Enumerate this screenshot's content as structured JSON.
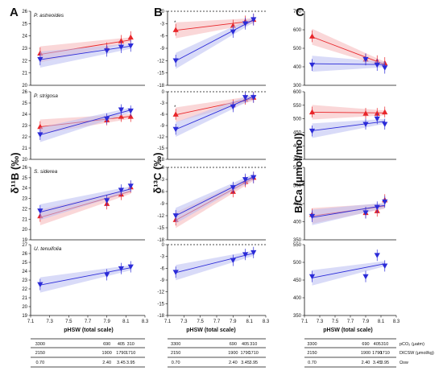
{
  "figure": {
    "panel_letters": [
      "A",
      "B",
      "C"
    ],
    "axis_labels": {
      "A_y": "δ¹¹B (‰)",
      "B_y": "δ¹³C (‰)",
      "C_y": "B/Ca (μmol/mol)",
      "x": "pHSW (total scale)"
    },
    "species": [
      "P. astreoides",
      "P. strigosa",
      "S. siderea",
      "U. tenuifolia"
    ],
    "asterisk": "*",
    "colors": {
      "red": "#e8262a",
      "blue": "#2b2bd8",
      "olive": "#8a7a2a",
      "red_band": "#f5b6b8",
      "blue_band": "#b9bdf2"
    }
  },
  "table": {
    "pco2": [
      "3300",
      "690",
      "405",
      "310"
    ],
    "dic": [
      "2150",
      "1900",
      "1790",
      "1710"
    ],
    "omega": [
      "0.70",
      "2.40",
      "3.45",
      "3.95"
    ],
    "labels": [
      "pCO₂ (μatm)",
      "DICSW (μmol/kg)",
      "Ωsw"
    ]
  },
  "chart_data": [
    {
      "type": "scatter",
      "panel": "A",
      "species": "P. astreoides",
      "x": [
        7.2,
        7.9,
        8.05,
        8.15
      ],
      "xlim": [
        7.1,
        8.3
      ],
      "ylim": [
        20,
        26
      ],
      "yticks": [
        20,
        21,
        22,
        23,
        24,
        25,
        26
      ],
      "series": [
        {
          "color": "red",
          "values": [
            22.6,
            23.0,
            23.6,
            23.9
          ]
        },
        {
          "color": "blue",
          "values": [
            22.1,
            22.8,
            23.1,
            23.2
          ]
        }
      ]
    },
    {
      "type": "scatter",
      "panel": "A",
      "species": "P. strigosa",
      "x": [
        7.2,
        7.9,
        8.05,
        8.15
      ],
      "xlim": [
        7.1,
        8.3
      ],
      "ylim": [
        20,
        26
      ],
      "yticks": [
        20,
        21,
        22,
        23,
        24,
        25,
        26
      ],
      "series": [
        {
          "color": "red",
          "values": [
            22.9,
            23.5,
            23.8,
            23.8
          ]
        },
        {
          "color": "blue",
          "values": [
            22.2,
            23.6,
            24.4,
            24.3
          ]
        }
      ]
    },
    {
      "type": "scatter",
      "panel": "A",
      "species": "S. siderea",
      "x": [
        7.2,
        7.9,
        8.05,
        8.15
      ],
      "xlim": [
        7.1,
        8.3
      ],
      "ylim": [
        19,
        26
      ],
      "yticks": [
        19,
        20,
        21,
        22,
        23,
        24,
        25,
        26
      ],
      "series": [
        {
          "color": "red",
          "values": [
            21.3,
            22.5,
            23.4,
            24.1
          ]
        },
        {
          "color": "blue",
          "values": [
            21.8,
            22.8,
            23.8,
            24.2
          ]
        }
      ]
    },
    {
      "type": "scatter",
      "panel": "A",
      "species": "U. tenuifolia",
      "x": [
        7.2,
        7.9,
        8.05,
        8.15
      ],
      "xlim": [
        7.1,
        8.3
      ],
      "ylim": [
        19,
        27
      ],
      "yticks": [
        19,
        20,
        21,
        22,
        23,
        24,
        25,
        26,
        27
      ],
      "series": [
        {
          "color": "blue",
          "values": [
            22.5,
            23.6,
            24.3,
            24.5
          ]
        }
      ]
    },
    {
      "type": "scatter",
      "panel": "B",
      "species": "P. astreoides",
      "x": [
        7.2,
        7.9,
        8.05,
        8.15
      ],
      "xlim": [
        7.1,
        8.3
      ],
      "ylim": [
        -18,
        0
      ],
      "yticks": [
        0,
        -3,
        -6,
        -9,
        -12,
        -15,
        -18
      ],
      "series": [
        {
          "color": "red",
          "values": [
            -4.5,
            -3.5,
            -2.5,
            -2.0
          ]
        },
        {
          "color": "blue",
          "values": [
            -12.0,
            -5.0,
            -3.0,
            -2.0
          ]
        }
      ]
    },
    {
      "type": "scatter",
      "panel": "B",
      "species": "P. strigosa",
      "x": [
        7.2,
        7.9,
        8.05,
        8.15
      ],
      "xlim": [
        7.1,
        8.3
      ],
      "ylim": [
        -18,
        0
      ],
      "yticks": [
        0,
        -3,
        -6,
        -9,
        -12,
        -15,
        -18
      ],
      "series": [
        {
          "color": "red",
          "values": [
            -6.0,
            -3.5,
            -2.0,
            -1.5
          ]
        },
        {
          "color": "blue",
          "values": [
            -10.0,
            -4.0,
            -1.5,
            -1.5
          ]
        }
      ]
    },
    {
      "type": "scatter",
      "panel": "B",
      "species": "S. siderea",
      "x": [
        7.2,
        7.9,
        8.05,
        8.15
      ],
      "xlim": [
        7.1,
        8.3
      ],
      "ylim": [
        -18,
        0
      ],
      "yticks": [
        0,
        -3,
        -6,
        -9,
        -12,
        -15,
        -18
      ],
      "series": [
        {
          "color": "red",
          "values": [
            -13.0,
            -6.0,
            -3.5,
            -2.5
          ]
        },
        {
          "color": "blue",
          "values": [
            -12.0,
            -5.0,
            -3.0,
            -2.5
          ]
        }
      ]
    },
    {
      "type": "scatter",
      "panel": "B",
      "species": "U. tenuifolia",
      "x": [
        7.2,
        7.9,
        8.05,
        8.15
      ],
      "xlim": [
        7.1,
        8.3
      ],
      "ylim": [
        -18,
        0
      ],
      "yticks": [
        0,
        -3,
        -6,
        -9,
        -12,
        -15,
        -18
      ],
      "series": [
        {
          "color": "blue",
          "values": [
            -7.0,
            -4.0,
            -2.5,
            -2.0
          ]
        }
      ]
    },
    {
      "type": "scatter",
      "panel": "C",
      "species": "P. astreoides",
      "x": [
        7.2,
        7.9,
        8.05,
        8.15
      ],
      "xlim": [
        7.1,
        8.3
      ],
      "ylim": [
        300,
        700
      ],
      "yticks": [
        300,
        400,
        500,
        600,
        700
      ],
      "series": [
        {
          "color": "red",
          "values": [
            565,
            440,
            430,
            420
          ]
        },
        {
          "color": "blue",
          "values": [
            410,
            440,
            410,
            395
          ]
        }
      ]
    },
    {
      "type": "scatter",
      "panel": "C",
      "species": "P. strigosa",
      "x": [
        7.2,
        7.9,
        8.05,
        8.15
      ],
      "xlim": [
        7.1,
        8.3
      ],
      "ylim": [
        350,
        600
      ],
      "yticks": [
        350,
        400,
        450,
        500,
        550,
        600
      ],
      "series": [
        {
          "color": "red",
          "values": [
            525,
            520,
            520,
            525
          ]
        },
        {
          "color": "blue",
          "values": [
            455,
            480,
            500,
            480
          ]
        }
      ]
    },
    {
      "type": "scatter",
      "panel": "C",
      "species": "S. siderea",
      "x": [
        7.2,
        7.9,
        8.05,
        8.15
      ],
      "xlim": [
        7.1,
        8.3
      ],
      "ylim": [
        350,
        550
      ],
      "yticks": [
        350,
        400,
        450,
        500,
        550
      ],
      "series": [
        {
          "color": "red",
          "values": [
            420,
            425,
            430,
            460
          ]
        },
        {
          "color": "blue",
          "values": [
            415,
            425,
            440,
            455
          ]
        }
      ]
    },
    {
      "type": "scatter",
      "panel": "C",
      "species": "U. tenuifolia",
      "x": [
        7.2,
        7.9,
        8.05,
        8.15
      ],
      "xlim": [
        7.1,
        8.3
      ],
      "ylim": [
        350,
        550
      ],
      "yticks": [
        350,
        400,
        450,
        500,
        550
      ],
      "series": [
        {
          "color": "blue",
          "values": [
            460,
            460,
            520,
            490
          ]
        }
      ]
    }
  ]
}
